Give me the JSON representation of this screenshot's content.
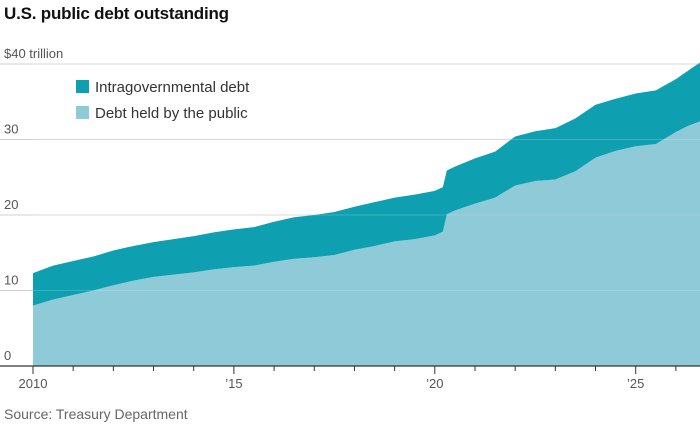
{
  "title": "U.S. public debt outstanding",
  "source": "Source: Treasury Department",
  "colors": {
    "intragovernmental": "#0e9fb1",
    "public": "#8ecad8",
    "grid": "#d0d0d0",
    "axis": "#333333"
  },
  "chart_data": {
    "type": "area",
    "stacked": true,
    "title": "U.S. public debt outstanding",
    "y_unit_label": "$40 trillion",
    "xlim": [
      2010.0,
      2026.6
    ],
    "ylim": [
      0,
      40
    ],
    "grid": true,
    "legend_position": "top-left",
    "x_ticks": [
      {
        "value": 2010,
        "label": "2010"
      },
      {
        "value": 2015,
        "label": "’15"
      },
      {
        "value": 2020,
        "label": "’20"
      },
      {
        "value": 2025,
        "label": "’25"
      }
    ],
    "y_ticks": [
      {
        "value": 0,
        "label": "0"
      },
      {
        "value": 10,
        "label": "10"
      },
      {
        "value": 20,
        "label": "20"
      },
      {
        "value": 30,
        "label": "30"
      },
      {
        "value": 40,
        "label": "$40 trillion"
      }
    ],
    "x": [
      2010.0,
      2010.5,
      2011.0,
      2011.5,
      2012.0,
      2012.5,
      2013.0,
      2013.5,
      2014.0,
      2014.5,
      2015.0,
      2015.5,
      2016.0,
      2016.5,
      2017.0,
      2017.5,
      2018.0,
      2018.5,
      2019.0,
      2019.5,
      2020.0,
      2020.2,
      2020.3,
      2020.5,
      2021.0,
      2021.5,
      2022.0,
      2022.5,
      2023.0,
      2023.5,
      2024.0,
      2024.5,
      2025.0,
      2025.5,
      2026.0,
      2026.3,
      2026.6
    ],
    "series": [
      {
        "name": "Debt held by the public",
        "values": [
          8.0,
          8.8,
          9.4,
          10.0,
          10.7,
          11.3,
          11.8,
          12.1,
          12.4,
          12.8,
          13.1,
          13.3,
          13.8,
          14.2,
          14.4,
          14.7,
          15.4,
          15.9,
          16.5,
          16.8,
          17.3,
          17.8,
          20.1,
          20.6,
          21.5,
          22.3,
          23.9,
          24.5,
          24.7,
          25.8,
          27.6,
          28.5,
          29.1,
          29.4,
          31.0,
          31.8,
          32.4
        ]
      },
      {
        "name": "Intragovernmental debt",
        "values": [
          4.3,
          4.5,
          4.5,
          4.5,
          4.6,
          4.6,
          4.6,
          4.7,
          4.8,
          4.9,
          5.0,
          5.1,
          5.3,
          5.5,
          5.6,
          5.7,
          5.7,
          5.8,
          5.8,
          5.9,
          5.9,
          5.9,
          5.8,
          5.8,
          6.0,
          6.1,
          6.5,
          6.6,
          6.8,
          7.0,
          7.0,
          6.9,
          7.0,
          7.1,
          7.0,
          7.3,
          7.8
        ]
      }
    ]
  }
}
